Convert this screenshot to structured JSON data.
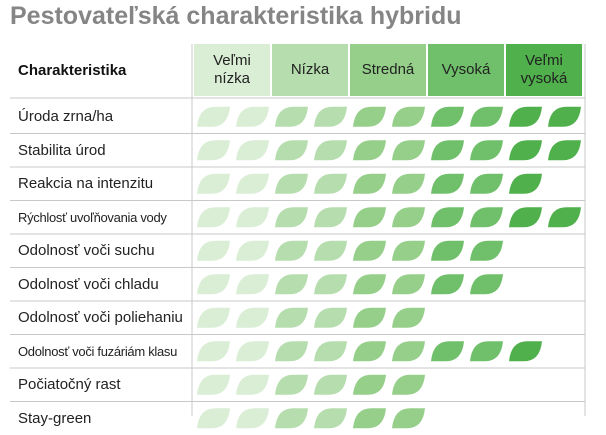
{
  "title": "Pestovateľská charakteristika hybridu",
  "table": {
    "header": "Charakteristika",
    "levels": [
      "Veľmi nízka",
      "Nízka",
      "Stredná",
      "Vysoká",
      "Veľmi vysoká"
    ],
    "colors": [
      "#d9eed5",
      "#b6ddae",
      "#95cf8a",
      "#70c06b",
      "#4fb04c"
    ],
    "rows": [
      {
        "label": "Úroda zrna/ha",
        "rating": 10
      },
      {
        "label": "Stabilita úrod",
        "rating": 10
      },
      {
        "label": "Reakcia na intenzitu",
        "rating": 9
      },
      {
        "label": "Rýchlosť uvoľňovania vody",
        "rating": 10
      },
      {
        "label": "Odolnosť voči suchu",
        "rating": 8
      },
      {
        "label": "Odolnosť voči chladu",
        "rating": 8
      },
      {
        "label": "Odolnosť voči poliehaniu",
        "rating": 6
      },
      {
        "label": "Odolnosť voči fuzáriám klasu",
        "rating": 9
      },
      {
        "label": "Počiatočný rast",
        "rating": 6
      },
      {
        "label": "Stay-green",
        "rating": 6
      }
    ]
  }
}
